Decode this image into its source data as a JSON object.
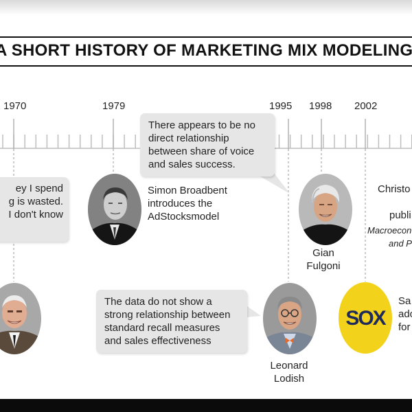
{
  "title": "A SHORT HISTORY OF MARKETING MIX MODELING",
  "years": [
    "1970",
    "1979",
    "1995",
    "1998",
    "2002"
  ],
  "quotes": {
    "wanamaker": [
      "ey I spend",
      "g is wasted.",
      "I don't know"
    ],
    "share_of_voice": [
      "There appears to be no",
      "direct relationship",
      "between share of voice",
      "and sales success."
    ],
    "lodish": [
      "The data do not show a",
      "strong relationship between",
      "standard recall measures",
      "and sales effectiveness"
    ]
  },
  "captions": {
    "broadbent": [
      "Simon Broadbent",
      "introduces the",
      "AdStocksmodel"
    ],
    "fulgoni": [
      "Gian",
      "Fulgoni"
    ],
    "lodish": [
      "Leonard",
      "Lodish"
    ],
    "christo": [
      "Christo",
      "publi",
      "Macroecon",
      "and P"
    ],
    "sox": [
      "Sa",
      "ado",
      "for"
    ]
  },
  "sox_logo_text": "SOX",
  "colors": {
    "sox_yellow": "#f2d21b",
    "sox_text": "#1d2a5a",
    "bubble": "#e6e6e6",
    "footer": "#0b0b0b"
  }
}
